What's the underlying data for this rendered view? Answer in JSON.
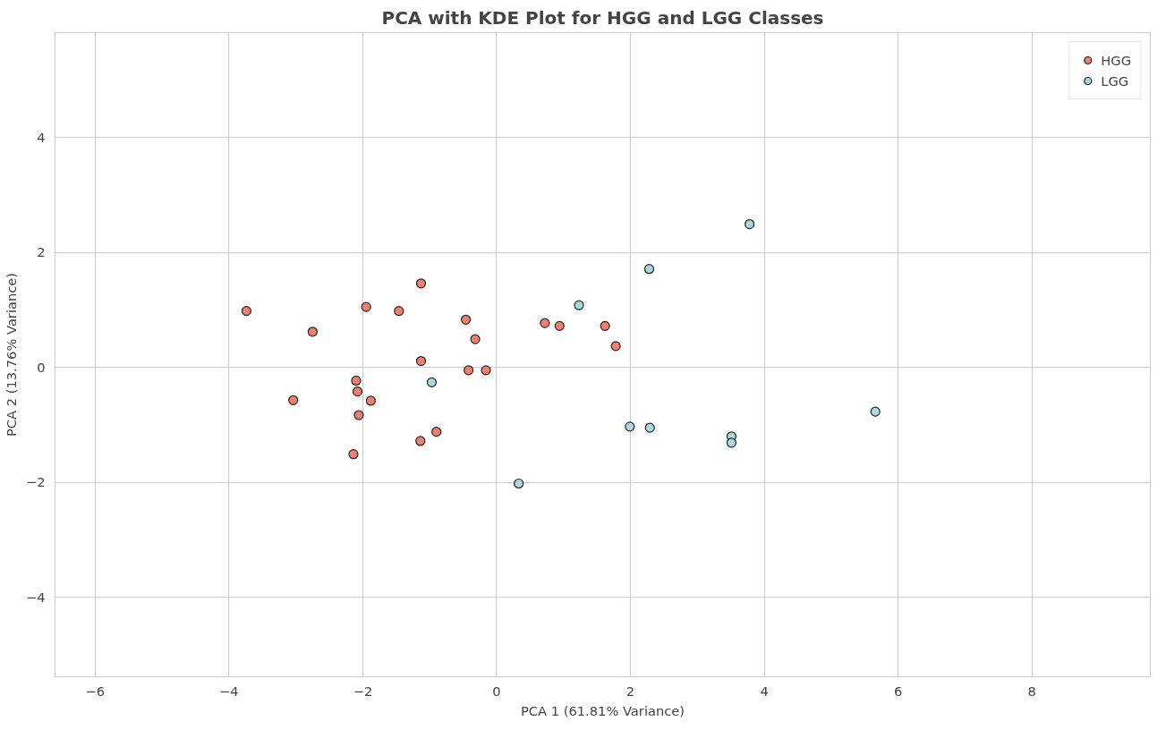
{
  "chart_data": {
    "type": "scatter",
    "title": "PCA with KDE Plot for HGG and LGG Classes",
    "xlabel": "PCA 1 (61.81% Variance)",
    "ylabel": "PCA 2 (13.76% Variance)",
    "xlim": [
      -6.6,
      9.77
    ],
    "ylim": [
      -5.38,
      5.82
    ],
    "xticks": [
      -6,
      -4,
      -2,
      0,
      2,
      4,
      6,
      8
    ],
    "yticks": [
      -4,
      -2,
      0,
      2,
      4
    ],
    "grid": true,
    "legend": "top right",
    "marker": "circle",
    "series": [
      {
        "name": "HGG",
        "color": "#ee8070",
        "x": [
          -3.74,
          -2.75,
          -3.04,
          -1.95,
          -1.46,
          -1.13,
          -1.13,
          -2.1,
          -2.08,
          -1.88,
          -2.06,
          -2.14,
          -1.14,
          -0.9,
          -0.46,
          -0.32,
          -0.42,
          -0.16,
          0.72,
          0.94,
          1.62,
          1.78
        ],
        "values": [
          0.98,
          0.62,
          -0.57,
          1.05,
          0.98,
          1.46,
          0.11,
          -0.23,
          -0.42,
          -0.58,
          -0.83,
          -1.51,
          -1.28,
          -1.12,
          0.83,
          0.49,
          -0.05,
          -0.05,
          0.77,
          0.72,
          0.72,
          0.37
        ]
      },
      {
        "name": "LGG",
        "color": "#a8d8e0",
        "x": [
          3.78,
          2.28,
          1.23,
          -0.97,
          0.33,
          1.99,
          2.29,
          3.51,
          3.51,
          5.66
        ],
        "values": [
          2.49,
          1.71,
          1.08,
          -0.26,
          -2.02,
          -1.03,
          -1.05,
          -1.2,
          -1.31,
          -0.77
        ]
      }
    ]
  }
}
